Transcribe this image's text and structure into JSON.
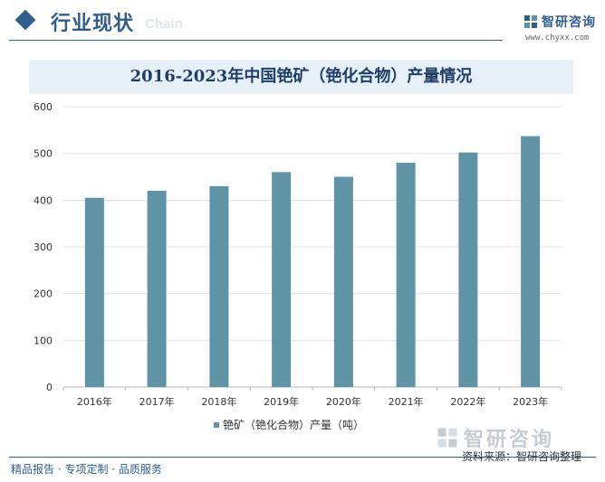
{
  "header": {
    "section_title": "行业现状",
    "section_sub": "Chain",
    "logo_text": "智研咨询",
    "logo_url": "www.chyxx.com"
  },
  "chart_data": {
    "type": "bar",
    "title": "2016-2023年中国铯矿（铯化合物）产量情况",
    "categories": [
      "2016年",
      "2017年",
      "2018年",
      "2019年",
      "2020年",
      "2021年",
      "2022年",
      "2023年"
    ],
    "series": [
      {
        "name": "铯矿（铯化合物）产量（吨）",
        "values": [
          405,
          420,
          430,
          460,
          450,
          480,
          502,
          537
        ]
      }
    ],
    "yticks": [
      "600",
      "500",
      "400",
      "300",
      "200",
      "100",
      "0"
    ],
    "ylim": [
      0,
      600
    ],
    "grid": true,
    "legend_position": "bottom",
    "bar_color": "#5f93a6"
  },
  "watermark": {
    "text": "智研咨询"
  },
  "footer": {
    "left": "精品报告 · 专项定制 · 品质服务",
    "right": "资料来源：智研咨询整理"
  }
}
